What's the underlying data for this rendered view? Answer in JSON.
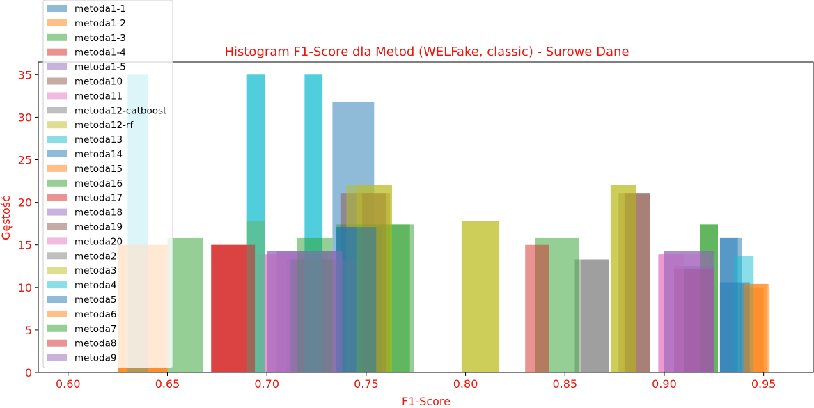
{
  "chart_data": {
    "type": "bar",
    "title": "Histogram F1-Score dla Metod (WELFake, classic) - Surowe Dane",
    "xlabel": "F1-Score",
    "ylabel": "Gęstość",
    "xlim": [
      0.585,
      0.975
    ],
    "ylim": [
      0,
      36.5
    ],
    "xticks": [
      0.6,
      0.65,
      0.7,
      0.75,
      0.8,
      0.85,
      0.9,
      0.95
    ],
    "xtick_labels": [
      "0.60",
      "0.65",
      "0.70",
      "0.75",
      "0.80",
      "0.85",
      "0.90",
      "0.95"
    ],
    "yticks": [
      0,
      5,
      10,
      15,
      20,
      25,
      30,
      35
    ],
    "ytick_labels": [
      "0",
      "5",
      "10",
      "15",
      "20",
      "25",
      "30",
      "35"
    ],
    "grid": false,
    "legend_position": "top-left",
    "bar_alpha": 0.5,
    "series": [
      {
        "name": "metoda1-1",
        "color": "#1f77b4",
        "bins": [
          [
            0.733,
            0.754,
            31.8
          ],
          [
            0.928,
            0.939,
            15.8
          ]
        ]
      },
      {
        "name": "metoda1-2",
        "color": "#ff7f0e",
        "bins": [
          [
            0.625,
            0.65,
            15.0
          ],
          [
            0.938,
            0.952,
            10.4
          ]
        ]
      },
      {
        "name": "metoda1-3",
        "color": "#2ca02c",
        "bins": [
          [
            0.735,
            0.774,
            17.4
          ],
          [
            0.918,
            0.927,
            17.4
          ]
        ]
      },
      {
        "name": "metoda1-4",
        "color": "#d62728",
        "bins": [
          [
            0.672,
            0.694,
            15.0
          ],
          [
            0.905,
            0.925,
            12.1
          ]
        ]
      },
      {
        "name": "metoda1-5",
        "color": "#9467bd",
        "bins": [
          [
            0.7,
            0.735,
            14.3
          ],
          [
            0.9,
            0.925,
            14.3
          ]
        ]
      },
      {
        "name": "metoda10",
        "color": "#8c564b",
        "bins": [
          [
            0.737,
            0.762,
            21.1
          ],
          [
            0.877,
            0.893,
            21.1
          ]
        ]
      },
      {
        "name": "metoda11",
        "color": "#e377c2",
        "bins": [
          [
            0.695,
            0.73,
            13.9
          ],
          [
            0.897,
            0.923,
            13.9
          ]
        ]
      },
      {
        "name": "metoda12-catboost",
        "color": "#7f7f7f",
        "bins": [
          [
            0.71,
            0.745,
            13.3
          ],
          [
            0.855,
            0.872,
            13.3
          ]
        ]
      },
      {
        "name": "metoda12-rf",
        "color": "#bcbd22",
        "bins": [
          [
            0.69,
            0.699,
            17.8
          ],
          [
            0.74,
            0.763,
            22.1
          ],
          [
            0.798,
            0.817,
            17.8
          ],
          [
            0.873,
            0.886,
            22.1
          ]
        ]
      },
      {
        "name": "metoda13",
        "color": "#17becf",
        "bins": [
          [
            0.63,
            0.64,
            35.0
          ],
          [
            0.69,
            0.699,
            35.0
          ],
          [
            0.719,
            0.728,
            35.0
          ]
        ]
      },
      {
        "name": "metoda14",
        "color": "#1f77b4",
        "bins": [
          [
            0.735,
            0.758,
            17.1
          ],
          [
            0.928,
            0.937,
            15.8
          ]
        ]
      },
      {
        "name": "metoda15",
        "color": "#ff7f0e",
        "bins": [
          [
            0.625,
            0.65,
            15.0
          ],
          [
            0.94,
            0.95,
            10.0
          ]
        ]
      },
      {
        "name": "metoda16",
        "color": "#2ca02c",
        "bins": [
          [
            0.745,
            0.772,
            17.4
          ],
          [
            0.918,
            0.927,
            17.4
          ]
        ]
      },
      {
        "name": "metoda17",
        "color": "#d62728",
        "bins": [
          [
            0.672,
            0.694,
            15.0
          ],
          [
            0.905,
            0.925,
            12.1
          ]
        ]
      },
      {
        "name": "metoda18",
        "color": "#9467bd",
        "bins": [
          [
            0.705,
            0.735,
            14.3
          ],
          [
            0.905,
            0.925,
            12.5
          ]
        ]
      },
      {
        "name": "metoda19",
        "color": "#8c564b",
        "bins": [
          [
            0.748,
            0.76,
            21.1
          ],
          [
            0.88,
            0.893,
            21.1
          ]
        ]
      },
      {
        "name": "metoda20",
        "color": "#e377c2",
        "bins": [
          [
            0.695,
            0.712,
            13.9
          ],
          [
            0.897,
            0.91,
            13.9
          ]
        ]
      },
      {
        "name": "metoda2",
        "color": "#7f7f7f",
        "bins": [
          [
            0.712,
            0.745,
            13.3
          ],
          [
            0.858,
            0.872,
            13.3
          ]
        ]
      },
      {
        "name": "metoda3",
        "color": "#bcbd22",
        "bins": [
          [
            0.69,
            0.699,
            17.8
          ],
          [
            0.745,
            0.763,
            22.1
          ],
          [
            0.798,
            0.817,
            17.8
          ],
          [
            0.873,
            0.886,
            22.1
          ]
        ]
      },
      {
        "name": "metoda4",
        "color": "#17becf",
        "bins": [
          [
            0.63,
            0.64,
            35.0
          ],
          [
            0.69,
            0.699,
            35.0
          ],
          [
            0.719,
            0.728,
            35.0
          ],
          [
            0.935,
            0.945,
            13.7
          ]
        ]
      },
      {
        "name": "metoda5",
        "color": "#1f77b4",
        "bins": [
          [
            0.735,
            0.755,
            17.1
          ],
          [
            0.928,
            0.943,
            10.6
          ]
        ]
      },
      {
        "name": "metoda6",
        "color": "#ff7f0e",
        "bins": [
          [
            0.625,
            0.65,
            15.0
          ],
          [
            0.94,
            0.953,
            10.4
          ]
        ]
      },
      {
        "name": "metoda7",
        "color": "#2ca02c",
        "bins": [
          [
            0.65,
            0.668,
            15.8
          ],
          [
            0.715,
            0.733,
            15.8
          ],
          [
            0.835,
            0.857,
            15.8
          ]
        ]
      },
      {
        "name": "metoda8",
        "color": "#d62728",
        "bins": [
          [
            0.672,
            0.694,
            15.0
          ],
          [
            0.83,
            0.842,
            15.0
          ]
        ]
      },
      {
        "name": "metoda9",
        "color": "#9467bd",
        "bins": [
          [
            0.7,
            0.738,
            14.3
          ],
          [
            0.9,
            0.925,
            14.3
          ]
        ]
      }
    ]
  }
}
